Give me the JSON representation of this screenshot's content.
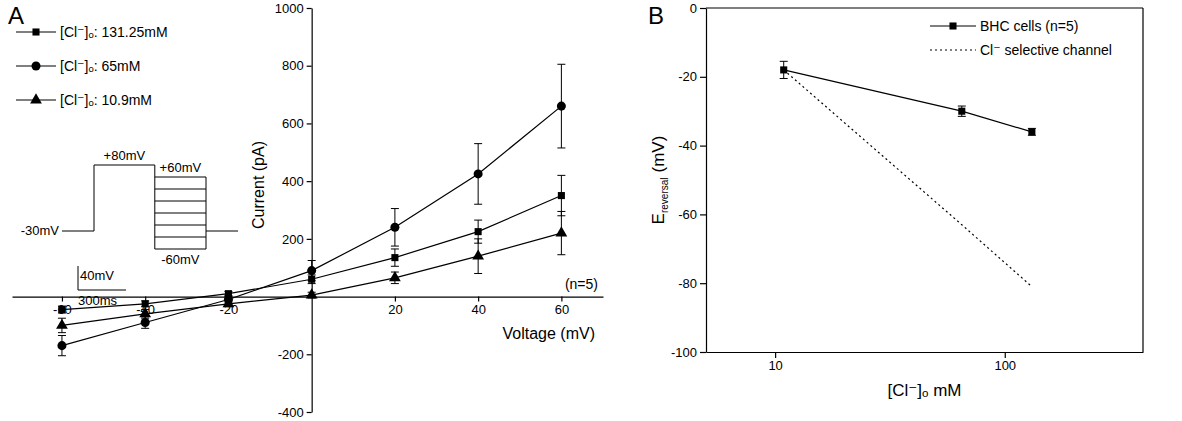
{
  "chart_data": [
    {
      "type": "line",
      "panel": "A",
      "xlabel": "Voltage (mV)",
      "ylabel": "Current (pA)",
      "annotations": [
        "(n=5)"
      ],
      "legend": "top-left",
      "x": [
        -60,
        -40,
        -20,
        0,
        20,
        40,
        60
      ],
      "xlim": [
        -72,
        70
      ],
      "ylim": [
        -400,
        1000
      ],
      "xticks": [
        -60,
        -40,
        -20,
        20,
        40,
        60
      ],
      "yticks": [
        -400,
        -200,
        200,
        400,
        600,
        800,
        1000
      ],
      "series": [
        {
          "name": "[Cl⁻]ₒ: 131.25mM",
          "color": "#000000",
          "marker": "square",
          "line_style": "solid",
          "values": [
            -45,
            -25,
            10,
            60,
            135,
            225,
            350
          ],
          "errors": [
            12,
            10,
            8,
            15,
            30,
            40,
            70
          ]
        },
        {
          "name": "[Cl⁻]ₒ: 65mM",
          "color": "#000000",
          "marker": "circle",
          "line_style": "solid",
          "values": [
            -170,
            -90,
            -10,
            90,
            240,
            425,
            660
          ],
          "errors": [
            35,
            20,
            12,
            35,
            65,
            105,
            145
          ]
        },
        {
          "name": "[Cl⁻]ₒ: 10.9mM",
          "color": "#000000",
          "marker": "triangle",
          "line_style": "solid",
          "values": [
            -100,
            -60,
            -25,
            5,
            65,
            140,
            220
          ],
          "errors": [
            25,
            15,
            10,
            10,
            20,
            60,
            75
          ]
        }
      ],
      "inset": {
        "times": [
          0,
          200,
          580,
          900,
          1100
        ],
        "holding": {
          "value": -30,
          "label": "-30mV"
        },
        "prepulse": {
          "value": 80,
          "label": "+80mV"
        },
        "steps": [
          60,
          40,
          20,
          0,
          -20,
          -40,
          -60
        ],
        "step_labels": [
          {
            "value": 60,
            "label": "+60mV"
          },
          {
            "value": -60,
            "label": "-60mV"
          }
        ],
        "scale_bars": [
          {
            "value": 40,
            "label": "40mV"
          },
          {
            "value": 300,
            "label": "300ms"
          }
        ]
      }
    },
    {
      "type": "line",
      "panel": "B",
      "xlabel": "[Cl⁻]ₒ mM",
      "ylabel": {
        "text": "E",
        "subscript": "reversal",
        "unit": "(mV)"
      },
      "log": "x",
      "legend": "top-right",
      "x": [
        10.9,
        65,
        131.25
      ],
      "xlim": [
        5,
        400
      ],
      "ylim": [
        -100,
        0
      ],
      "xticks": [
        10,
        100
      ],
      "yticks": [
        -100,
        -80,
        -60,
        -40,
        -20,
        0
      ],
      "series": [
        {
          "name": "BHC cells (n=5)",
          "color": "#000000",
          "marker": "square",
          "line_style": "solid",
          "values": [
            -18,
            -30,
            -36
          ],
          "errors": [
            2.5,
            1.5,
            1
          ]
        },
        {
          "name": "Cl⁻ selective channel",
          "color": "#000000",
          "line_style": "dotted",
          "values": [
            -18,
            -63,
            -81
          ]
        }
      ]
    }
  ]
}
